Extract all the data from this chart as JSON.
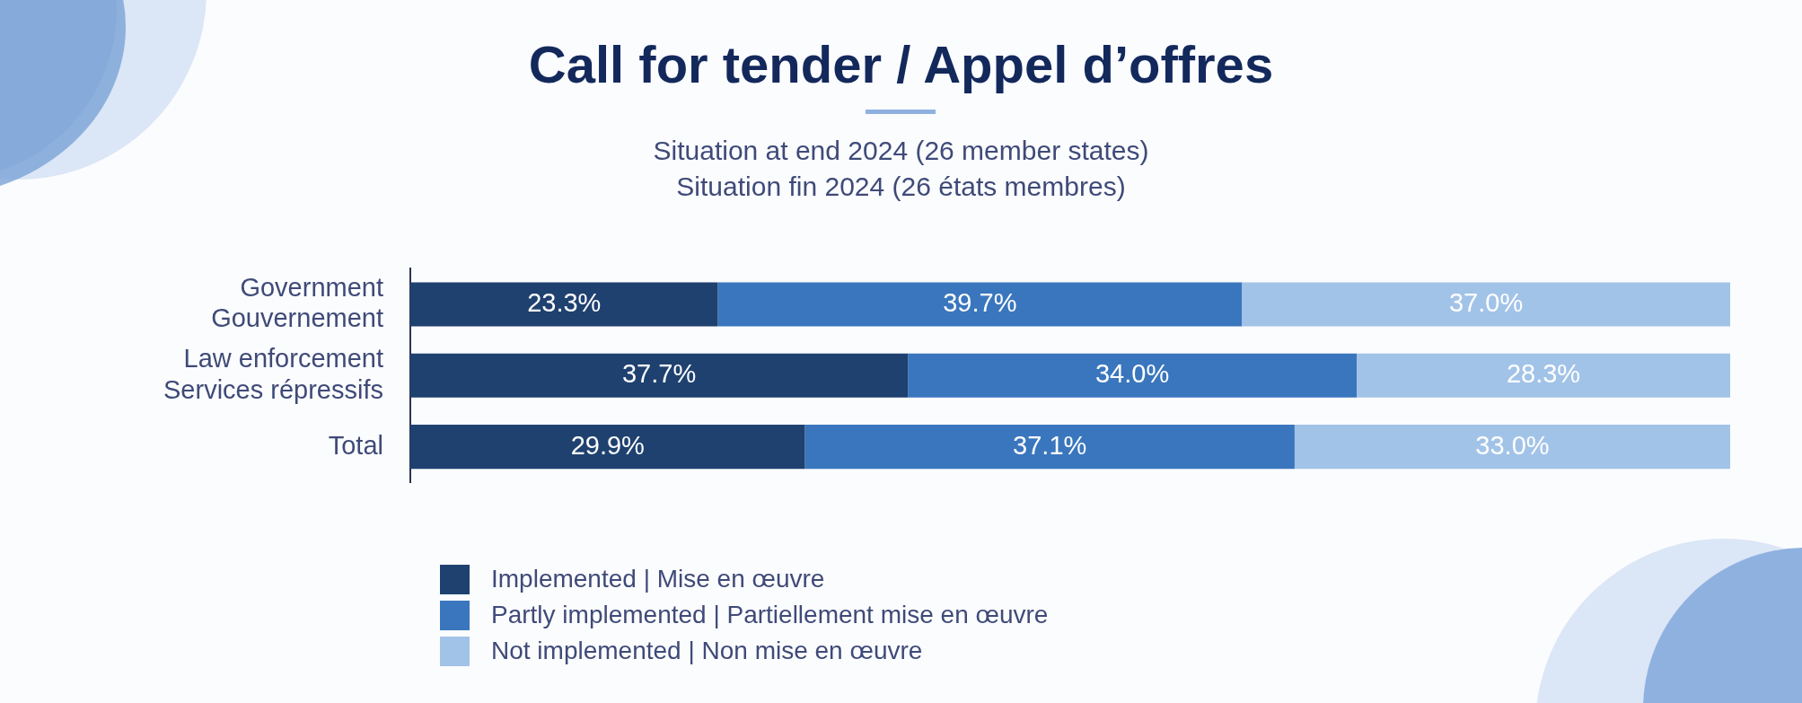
{
  "chart_data": {
    "type": "bar",
    "orientation": "horizontal",
    "stacked": true,
    "title": "Call for tender / Appel d’offres",
    "subtitle": "Situation at end 2024 (26 member states)\nSituation fin 2024 (26 états membres)",
    "categories": [
      "Government\nGouvernement",
      "Law enforcement\nServices répressifs",
      "Total"
    ],
    "xlim": [
      0,
      100
    ],
    "tick_labels": "y",
    "grid": false,
    "legend": "bottom",
    "series": [
      {
        "name": "Implemented | Mise en œuvre",
        "color": "#1f4170",
        "values": [
          23.3,
          37.7,
          29.9
        ],
        "value_labels": [
          "23.3%",
          "37.7%",
          "29.9%"
        ]
      },
      {
        "name": "Partly implemented | Partiellement mise en œuvre",
        "color": "#3a76bd",
        "values": [
          39.7,
          34.0,
          37.1
        ],
        "value_labels": [
          "39.7%",
          "34.0%",
          "37.1%"
        ]
      },
      {
        "name": "Not implemented | Non mise en œuvre",
        "color": "#a2c3e8",
        "values": [
          37.0,
          28.3,
          33.0
        ],
        "value_labels": [
          "37.0%",
          "28.3%",
          "33.0%"
        ]
      }
    ]
  }
}
